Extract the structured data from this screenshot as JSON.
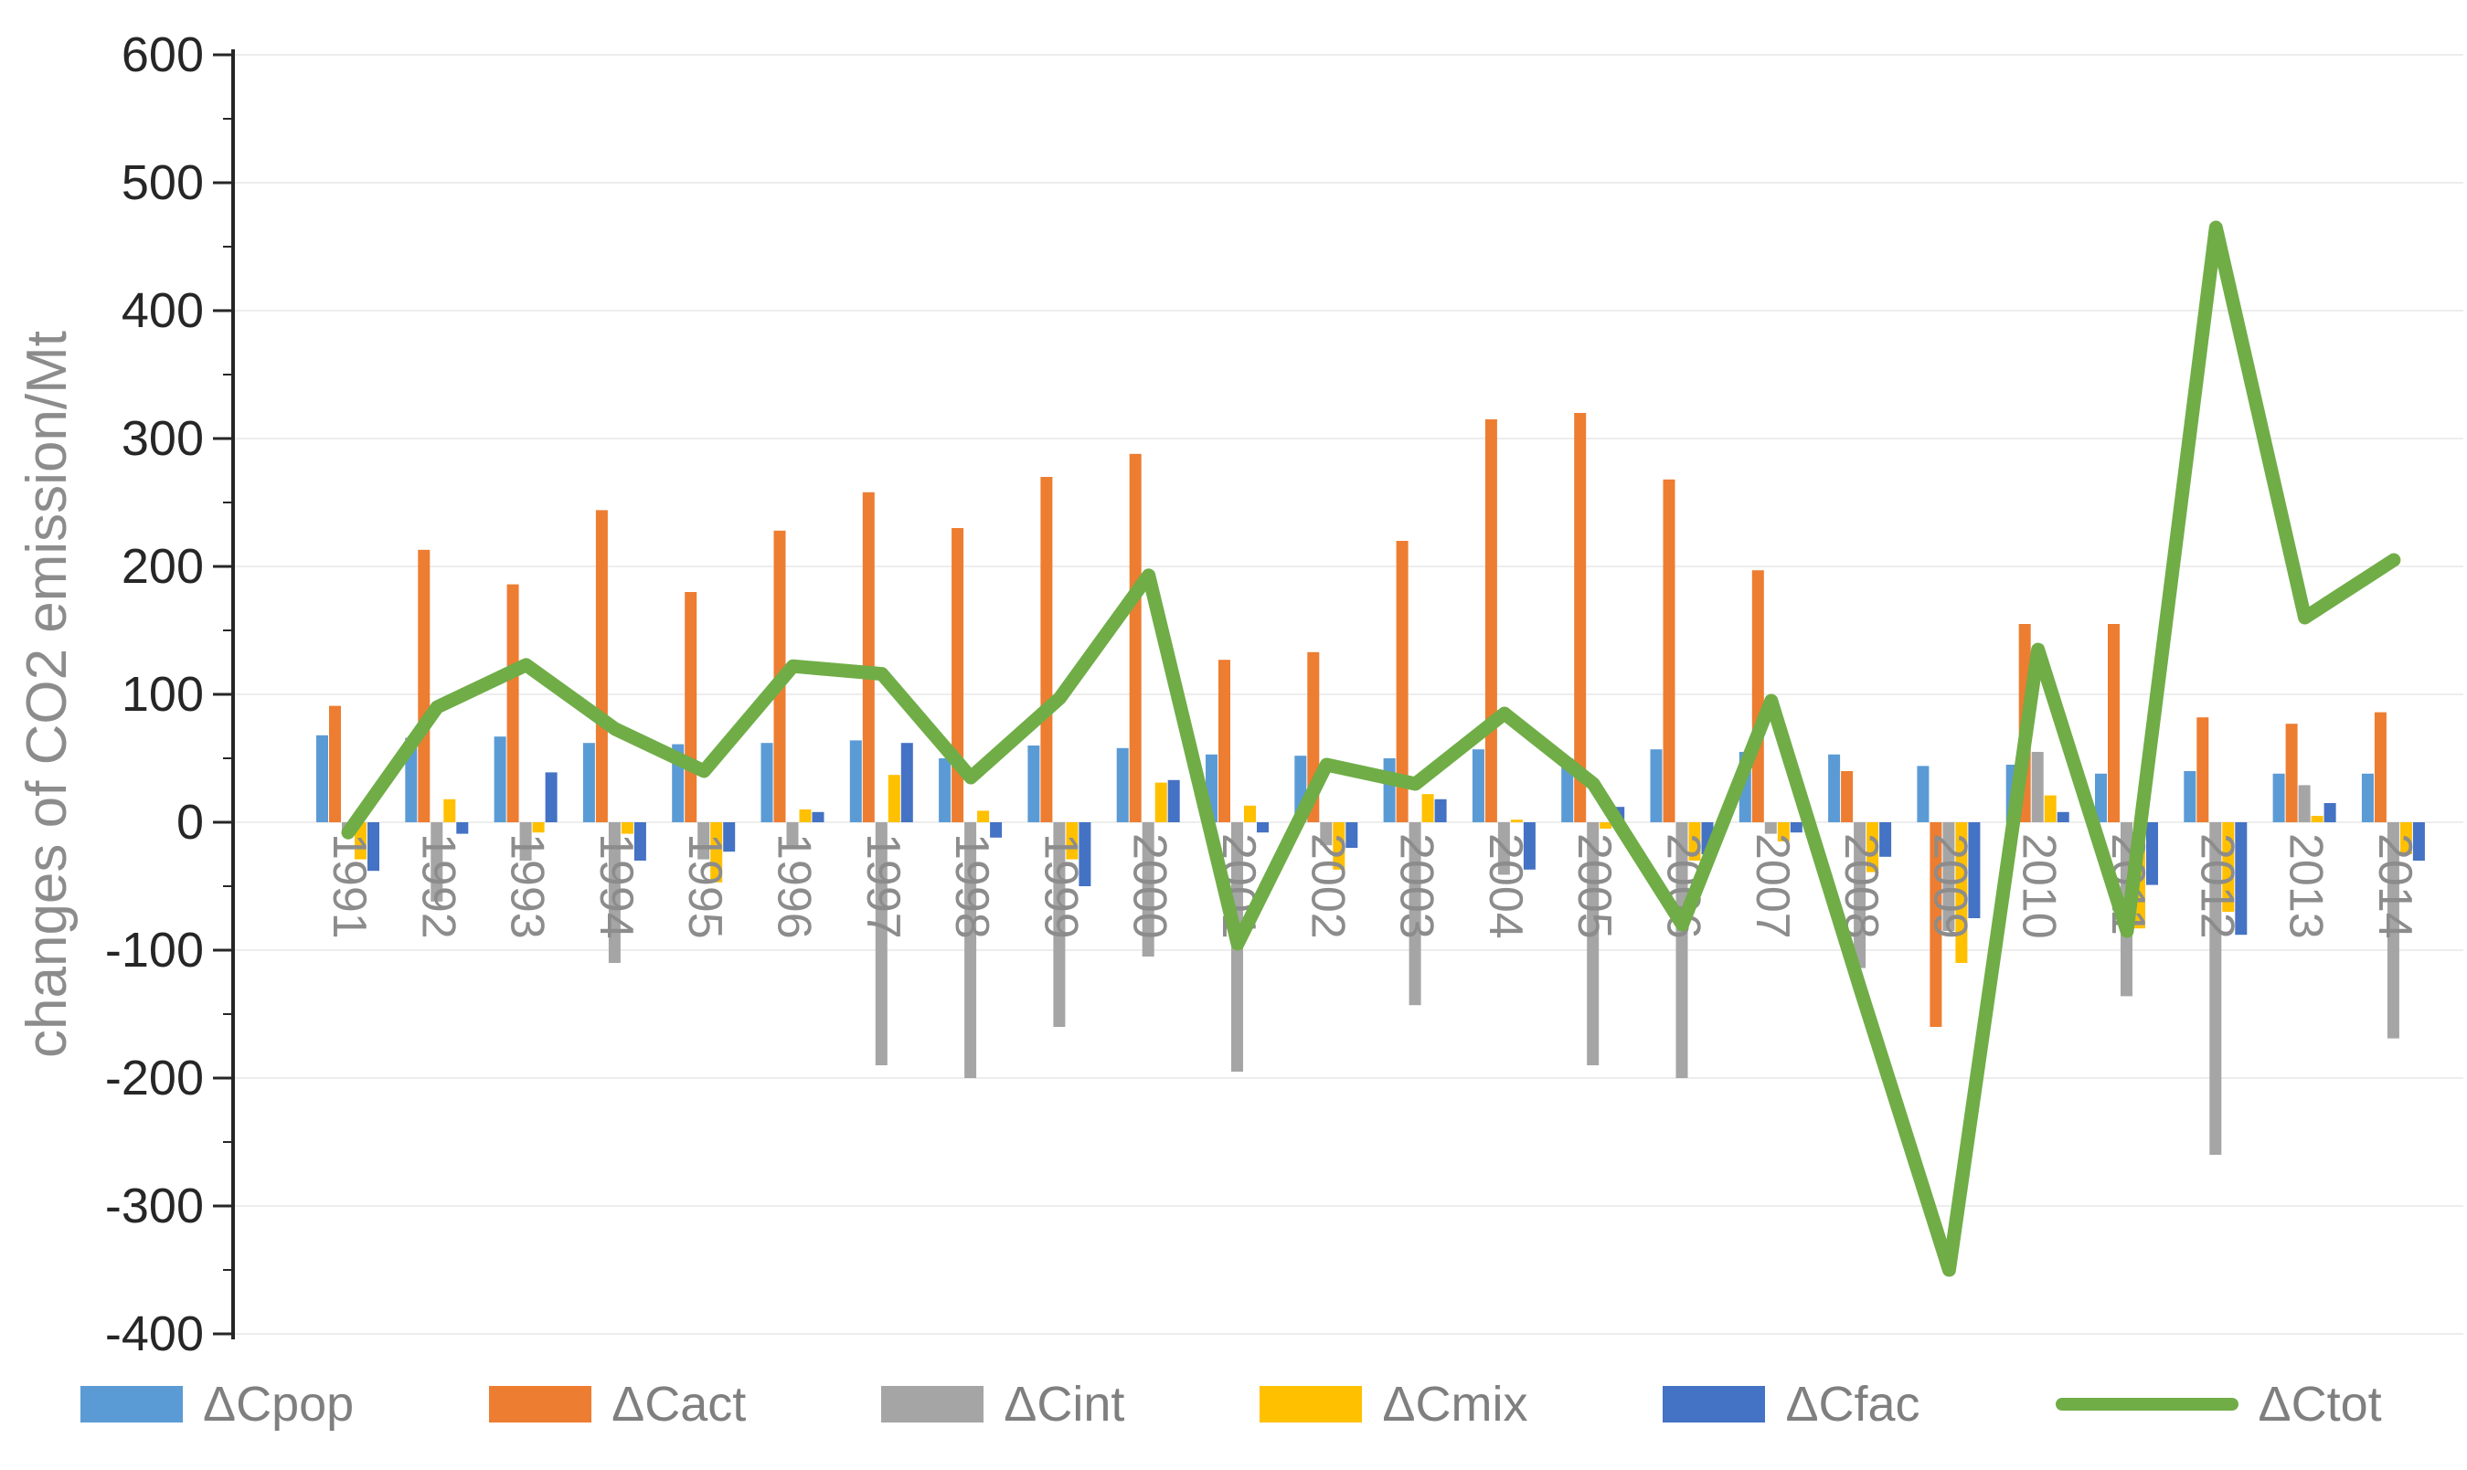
{
  "figure": {
    "background_color": "#ffffff",
    "axis_line_color": "#262626",
    "gridline_color": "#ededed",
    "ytick_label_color": "#262626",
    "year_label_color": "#8c8c8c",
    "axis_title_color": "#8c8c8c",
    "legend_text_color": "#7f7f7f"
  },
  "chart_data": {
    "type": "bar",
    "subtype": "grouped-bars-with-line-overlay",
    "title": "",
    "xlabel": "",
    "ylabel": "changes of CO2 emission/Mt",
    "ylim": [
      -400,
      600
    ],
    "ytick_step": 100,
    "grid": true,
    "legend_position": "bottom",
    "categories": [
      "1991",
      "1992",
      "1993",
      "1994",
      "1995",
      "1996",
      "1997",
      "1998",
      "1999",
      "2000",
      "2001",
      "2002",
      "2003",
      "2004",
      "2005",
      "2006",
      "2007",
      "2008",
      "2009",
      "2010",
      "2011",
      "2012",
      "2013",
      "2014"
    ],
    "series": [
      {
        "name": "ΔCpop",
        "type": "bar",
        "color": "#5B9BD5",
        "values": [
          68,
          66,
          67,
          62,
          61,
          62,
          64,
          50,
          60,
          58,
          53,
          52,
          50,
          57,
          50,
          57,
          55,
          53,
          44,
          45,
          38,
          40,
          38,
          38
        ]
      },
      {
        "name": "ΔCact",
        "type": "bar",
        "color": "#ED7D31",
        "values": [
          91,
          213,
          186,
          244,
          180,
          228,
          258,
          230,
          270,
          288,
          127,
          133,
          220,
          315,
          320,
          268,
          197,
          40,
          -160,
          155,
          155,
          82,
          77,
          86
        ]
      },
      {
        "name": "ΔCint",
        "type": "bar",
        "color": "#A5A5A5",
        "values": [
          -8,
          -62,
          -30,
          -110,
          -29,
          -20,
          -190,
          -200,
          -160,
          -105,
          -195,
          -18,
          -143,
          -41,
          -190,
          -200,
          -9,
          -114,
          -85,
          55,
          -136,
          -260,
          29,
          -169
        ]
      },
      {
        "name": "ΔCmix",
        "type": "bar",
        "color": "#FFC000",
        "values": [
          -29,
          18,
          -8,
          -9,
          -47,
          10,
          37,
          9,
          -29,
          31,
          13,
          -37,
          22,
          2,
          -5,
          -30,
          -15,
          -39,
          -110,
          21,
          -83,
          -70,
          5,
          -25
        ]
      },
      {
        "name": "ΔCfac",
        "type": "bar",
        "color": "#4472C4",
        "values": [
          -38,
          -9,
          39,
          -30,
          -23,
          8,
          62,
          -12,
          -50,
          33,
          -8,
          -20,
          18,
          -37,
          12,
          -25,
          -8,
          -27,
          -75,
          8,
          -49,
          -88,
          15,
          -30
        ]
      },
      {
        "name": "ΔCtot",
        "type": "line",
        "color": "#70AD47",
        "values": [
          -8,
          90,
          123,
          73,
          40,
          122,
          116,
          35,
          97,
          193,
          -95,
          45,
          30,
          85,
          30,
          -80,
          95,
          -130,
          -350,
          135,
          -85,
          465,
          160,
          205
        ]
      }
    ]
  }
}
